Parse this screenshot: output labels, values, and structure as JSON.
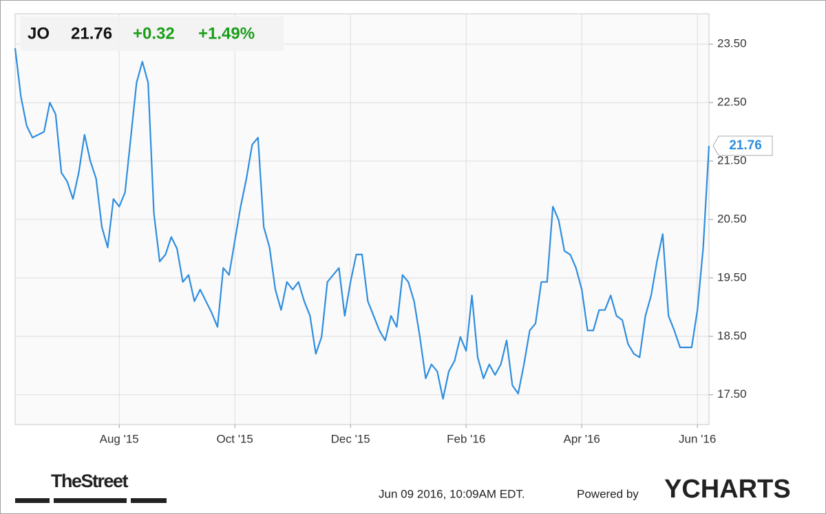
{
  "header": {
    "ticker": "JO",
    "price": "21.76",
    "change": "+0.32",
    "change_pct": "+1.49%"
  },
  "chart_data": {
    "type": "line",
    "categories": [
      null,
      null,
      null,
      null,
      null,
      null,
      null,
      null,
      null,
      null,
      null,
      null,
      null,
      null,
      null,
      null,
      null,
      null,
      "Aug '15",
      null,
      null,
      null,
      null,
      null,
      null,
      null,
      null,
      null,
      null,
      null,
      null,
      null,
      null,
      null,
      null,
      null,
      null,
      null,
      "Oct '15",
      null,
      null,
      null,
      null,
      null,
      null,
      null,
      null,
      null,
      null,
      null,
      null,
      null,
      null,
      null,
      null,
      null,
      null,
      null,
      "Dec '15",
      null,
      null,
      null,
      null,
      null,
      null,
      null,
      null,
      null,
      null,
      null,
      null,
      null,
      null,
      null,
      null,
      null,
      null,
      null,
      "Feb '16",
      null,
      null,
      null,
      null,
      null,
      null,
      null,
      null,
      null,
      null,
      null,
      null,
      null,
      null,
      null,
      null,
      null,
      null,
      null,
      "Apr '16",
      null,
      null,
      null,
      null,
      null,
      null,
      null,
      null,
      null,
      null,
      null,
      null,
      null,
      null,
      null,
      null,
      null,
      null,
      null,
      "Jun '16",
      null,
      null
    ],
    "series": [
      {
        "name": "JO",
        "color": "#2e8ddf",
        "values": [
          23.43,
          22.6,
          22.1,
          21.9,
          21.95,
          22.0,
          22.5,
          22.3,
          21.3,
          21.15,
          20.85,
          21.3,
          21.95,
          21.5,
          21.2,
          20.37,
          20.02,
          20.85,
          20.72,
          20.96,
          21.9,
          22.84,
          23.2,
          22.84,
          20.6,
          19.78,
          19.9,
          20.2,
          20.0,
          19.43,
          19.55,
          19.1,
          19.3,
          19.1,
          18.9,
          18.66,
          19.67,
          19.55,
          20.14,
          20.72,
          21.2,
          21.78,
          21.9,
          20.37,
          20.02,
          19.3,
          18.95,
          19.43,
          19.3,
          19.43,
          19.1,
          18.85,
          18.2,
          18.49,
          19.43,
          19.55,
          19.67,
          18.85,
          19.43,
          19.9,
          19.9,
          19.1,
          18.85,
          18.6,
          18.43,
          18.85,
          18.66,
          19.55,
          19.43,
          19.1,
          18.49,
          17.78,
          18.02,
          17.9,
          17.43,
          17.9,
          18.08,
          18.49,
          18.25,
          19.2,
          18.14,
          17.78,
          18.02,
          17.84,
          18.02,
          18.43,
          17.66,
          17.52,
          18.02,
          18.6,
          18.72,
          19.43,
          19.43,
          20.72,
          20.49,
          19.96,
          19.9,
          19.67,
          19.3,
          18.6,
          18.6,
          18.95,
          18.95,
          19.2,
          18.85,
          18.78,
          18.37,
          18.2,
          18.14,
          18.85,
          19.2,
          19.78,
          20.25,
          18.85,
          18.6,
          18.31,
          18.31,
          18.31,
          18.95,
          20.02,
          21.76
        ]
      }
    ],
    "ylim": [
      16.99,
      24.02
    ],
    "yticks": [
      {
        "value": 17.5,
        "label": "17.50"
      },
      {
        "value": 18.5,
        "label": "18.50"
      },
      {
        "value": 19.5,
        "label": "19.50"
      },
      {
        "value": 20.5,
        "label": "20.50"
      },
      {
        "value": 21.5,
        "label": "21.50"
      },
      {
        "value": 22.5,
        "label": "22.50"
      },
      {
        "value": 23.5,
        "label": "23.50"
      }
    ],
    "grid": true
  },
  "footer": {
    "source": "TheStreet",
    "timestamp": "Jun 09 2016, 10:09AM EDT.",
    "powered": "Powered by",
    "brand": "YCHARTS"
  }
}
